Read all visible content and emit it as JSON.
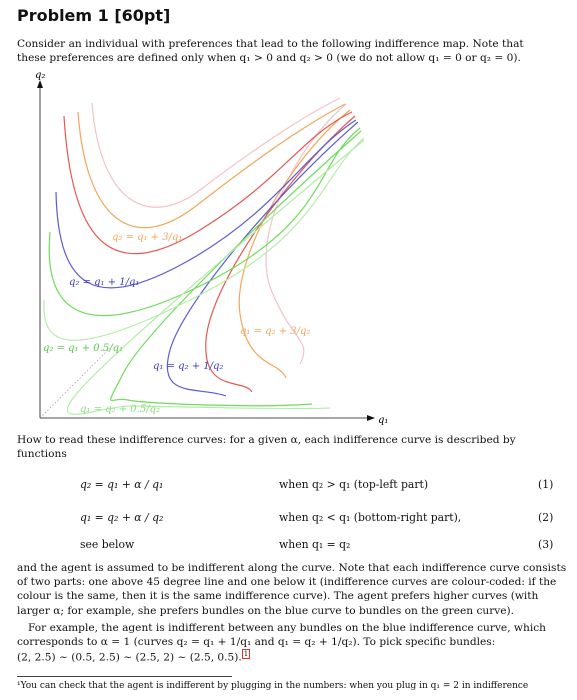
{
  "header": {
    "title": "Problem 1 [60pt]"
  },
  "intro": [
    "Consider an individual with preferences that lead to the following indifference map. Note that",
    "these preferences are defined only when q₁ > 0 and q₂ > 0 (we do not allow q₁ = 0 or q₂ = 0)."
  ],
  "figure": {
    "y_axis_label": "q₂",
    "x_axis_label": "q₁",
    "colors": {
      "pink": "#f4c2c8",
      "orange": "#f2a65a",
      "red": "#e8574e",
      "blue": "#5b5bd6",
      "green": "#6fdc5a",
      "light_green": "#b6ecab"
    },
    "curve_labels": {
      "orange_upper": "q₂ = q₁ + 3/q₁",
      "blue_upper": "q₂ = q₁ + 1/q₁",
      "green_upper": "q₂ = q₁ + 0.5/q₁",
      "orange_lower": "q₁ = q₂ + 3/q₂",
      "blue_lower": "q₁ = q₂ + 1/q₂",
      "green_lower": "q₁ = q₂ + 0.5/q₂"
    }
  },
  "how_to_read": [
    "How to read these indifference curves: for a given α, each indifference curve is described by",
    "functions"
  ],
  "equations": [
    {
      "lhs": "q₂ = q₁ + α / q₁",
      "condition": "when q₂ > q₁ (top-left part)",
      "number": "(1)"
    },
    {
      "lhs": "q₁ = q₂ + α / q₂",
      "condition": "when q₂ < q₁ (bottom-right part),",
      "number": "(2)"
    },
    {
      "lhs": "see below",
      "condition": "when q₁ = q₂",
      "number": "(3)"
    }
  ],
  "body": [
    "and the agent is assumed to be indifferent along the curve. Note that each indifference curve consists",
    "of two parts: one above 45 degree line and one below it (indifference curves are colour-coded: if the",
    "colour is the same, then it is the same indifference curve). The agent prefers higher curves (with",
    "larger α; for example, she prefers bundles on the blue curve to bundles on the green curve)."
  ],
  "example": [
    "For example, the agent is indifferent between any bundles on the blue indifference curve, which",
    "corresponds to α = 1 (curves q₂ = q₁ + 1/q₁ and q₁ = q₂ + 1/q₂). To pick specific bundles:",
    "(2, 2.5) ~ (0.5, 2.5) ~ (2.5, 2) ~ (2.5, 0.5)."
  ],
  "footnote_marker": "1",
  "footnote": "¹You can check that the agent is indifferent by plugging in the numbers: when you plug in q₁ = 2 in indifference"
}
